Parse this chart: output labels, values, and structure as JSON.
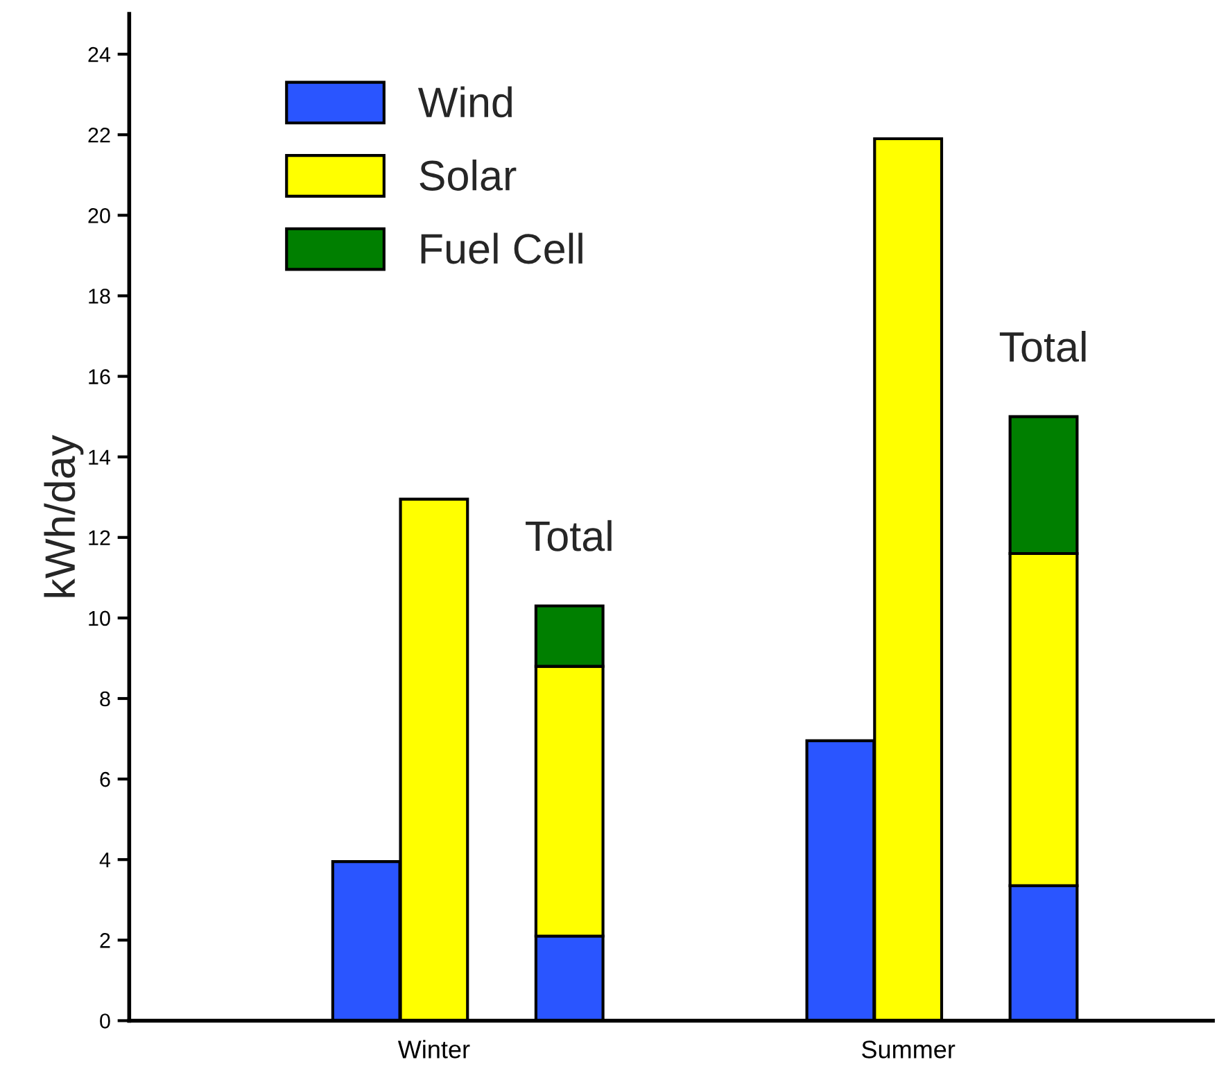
{
  "chart_data": {
    "type": "bar",
    "ylabel": "kWh/day",
    "categories": [
      null,
      null,
      null,
      null,
      "Winter",
      null,
      null,
      null,
      null,
      null,
      null,
      "Summer",
      null,
      null,
      null,
      null
    ],
    "series": [
      {
        "name": "Wind",
        "color": "#2a55ff",
        "values": [
          null,
          null,
          null,
          3.95,
          null,
          null,
          2.1,
          null,
          null,
          null,
          6.95,
          null,
          null,
          3.35,
          null,
          null
        ]
      },
      {
        "name": "Solar",
        "color": "#ffff00",
        "values": [
          null,
          null,
          null,
          null,
          12.95,
          null,
          6.7,
          null,
          null,
          null,
          null,
          21.9,
          null,
          8.25,
          null,
          null
        ]
      },
      {
        "name": "Fuel Cell",
        "color": "#007f00",
        "values": [
          null,
          null,
          null,
          null,
          null,
          null,
          1.5,
          null,
          null,
          null,
          null,
          null,
          null,
          3.4,
          null,
          null
        ]
      }
    ],
    "stacked": true,
    "ylim": [
      0,
      25
    ],
    "yticks": [
      0,
      2,
      4,
      6,
      8,
      10,
      12,
      14,
      16,
      18,
      20,
      22,
      24
    ],
    "annotations": [
      "Total",
      "Total"
    ],
    "legend": "top left",
    "grid": false
  }
}
